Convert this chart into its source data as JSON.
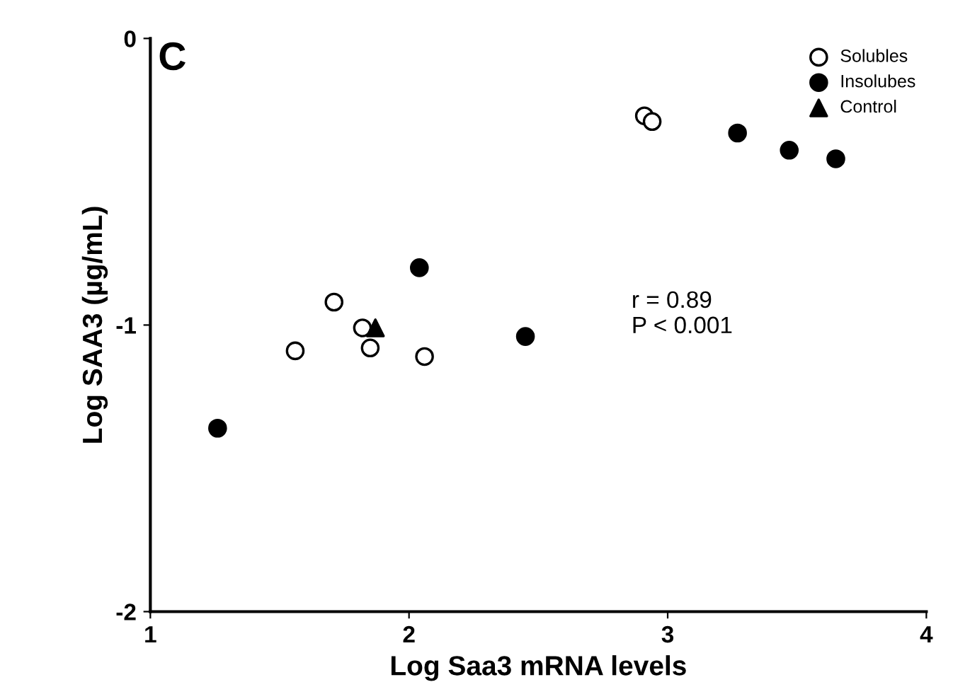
{
  "chart_data": {
    "type": "scatter",
    "xlabel": "Log Saa3 mRNA levels",
    "ylabel": "Log SAA3 (µg/mL)",
    "annotations": [
      "C",
      "r = 0.89\nP < 0.001"
    ],
    "xlim": [
      1,
      4
    ],
    "ylim": [
      -2,
      0
    ],
    "xticks": [
      1,
      2,
      3,
      4
    ],
    "yticks": [
      -2,
      -1,
      0
    ],
    "grid": false,
    "legend": "top right",
    "series": [
      {
        "name": "Solubles",
        "color": "#ffffff",
        "marker": "circle",
        "x": [
          1.56,
          1.71,
          1.82,
          1.85,
          2.06,
          2.91,
          2.94
        ],
        "values": [
          -1.09,
          -0.92,
          -1.01,
          -1.08,
          -1.11,
          -0.27,
          -0.29
        ]
      },
      {
        "name": "Insolubes",
        "color": "#000000",
        "marker": "circle",
        "x": [
          1.26,
          2.04,
          2.45,
          3.27,
          3.47,
          3.65
        ],
        "values": [
          -1.36,
          -0.8,
          -1.04,
          -0.33,
          -0.39,
          -0.42
        ]
      },
      {
        "name": "Control",
        "color": "#000000",
        "marker": "triangle",
        "x": [
          1.87
        ],
        "values": [
          -1.01
        ]
      }
    ]
  }
}
